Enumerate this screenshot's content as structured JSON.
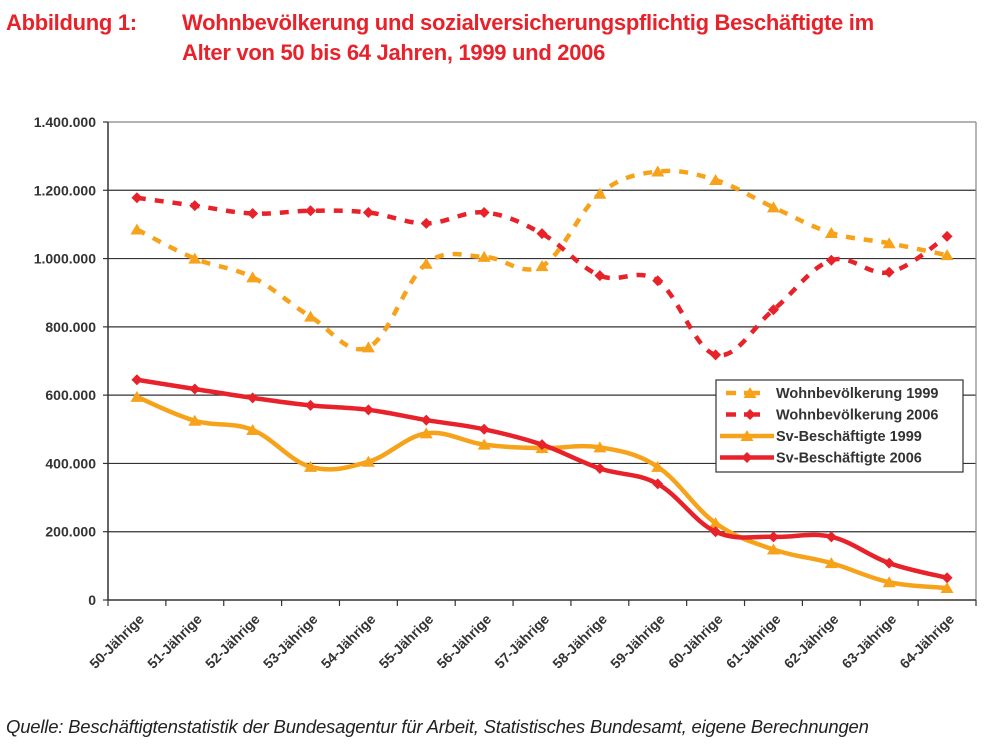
{
  "title": {
    "label": "Abbildung 1:",
    "line1": "Wohnbevölkerung und sozialversicherungspflichtig Beschäftigte im",
    "line2": "Alter von 50 bis 64 Jahren, 1999 und 2006"
  },
  "source": "Quelle: Beschäftigtenstatistik der Bundesagentur für Arbeit, Statistisches Bundesamt, eigene Berechnungen",
  "chart_data": {
    "type": "line",
    "title": "Wohnbevölkerung und sozialversicherungspflichtig Beschäftigte im Alter von 50 bis 64 Jahren, 1999 und 2006",
    "xlabel": "",
    "ylabel": "",
    "ylim": [
      0,
      1400000
    ],
    "yticks": [
      0,
      200000,
      400000,
      600000,
      800000,
      1000000,
      1200000,
      1400000
    ],
    "ytick_labels": [
      "0",
      "200.000",
      "400.000",
      "600.000",
      "800.000",
      "1.000.000",
      "1.200.000",
      "1.400.000"
    ],
    "grid": true,
    "legend_position": "center-right",
    "categories": [
      "50-Jährige",
      "51-Jährige",
      "52-Jährige",
      "53-Jährige",
      "54-Jährige",
      "55-Jährige",
      "56-Jährige",
      "57-Jährige",
      "58-Jährige",
      "59-Jährige",
      "60-Jährige",
      "61-Jährige",
      "62-Jährige",
      "63-Jährige",
      "64-Jährige"
    ],
    "series": [
      {
        "name": "Wohnbevölkerung 1999",
        "color": "#f6a31b",
        "style": "dashed",
        "marker": "triangle",
        "values": [
          1085000,
          1000000,
          945000,
          830000,
          740000,
          985000,
          1005000,
          978000,
          1190000,
          1255000,
          1230000,
          1150000,
          1075000,
          1045000,
          1010000
        ]
      },
      {
        "name": "Wohnbevölkerung 2006",
        "color": "#e8222a",
        "style": "dashed",
        "marker": "diamond",
        "values": [
          1178000,
          1155000,
          1132000,
          1140000,
          1135000,
          1103000,
          1135000,
          1073000,
          950000,
          935000,
          718000,
          850000,
          995000,
          960000,
          1065000
        ]
      },
      {
        "name": "Sv-Beschäftigte 1999",
        "color": "#f6a31b",
        "style": "solid",
        "marker": "triangle",
        "values": [
          595000,
          525000,
          498000,
          390000,
          405000,
          488000,
          455000,
          445000,
          447000,
          390000,
          225000,
          148000,
          108000,
          52000,
          35000
        ]
      },
      {
        "name": "Sv-Beschäftigte 2006",
        "color": "#e8222a",
        "style": "solid",
        "marker": "diamond",
        "values": [
          645000,
          618000,
          592000,
          570000,
          557000,
          527000,
          500000,
          455000,
          385000,
          340000,
          200000,
          185000,
          185000,
          108000,
          65000
        ]
      }
    ]
  }
}
